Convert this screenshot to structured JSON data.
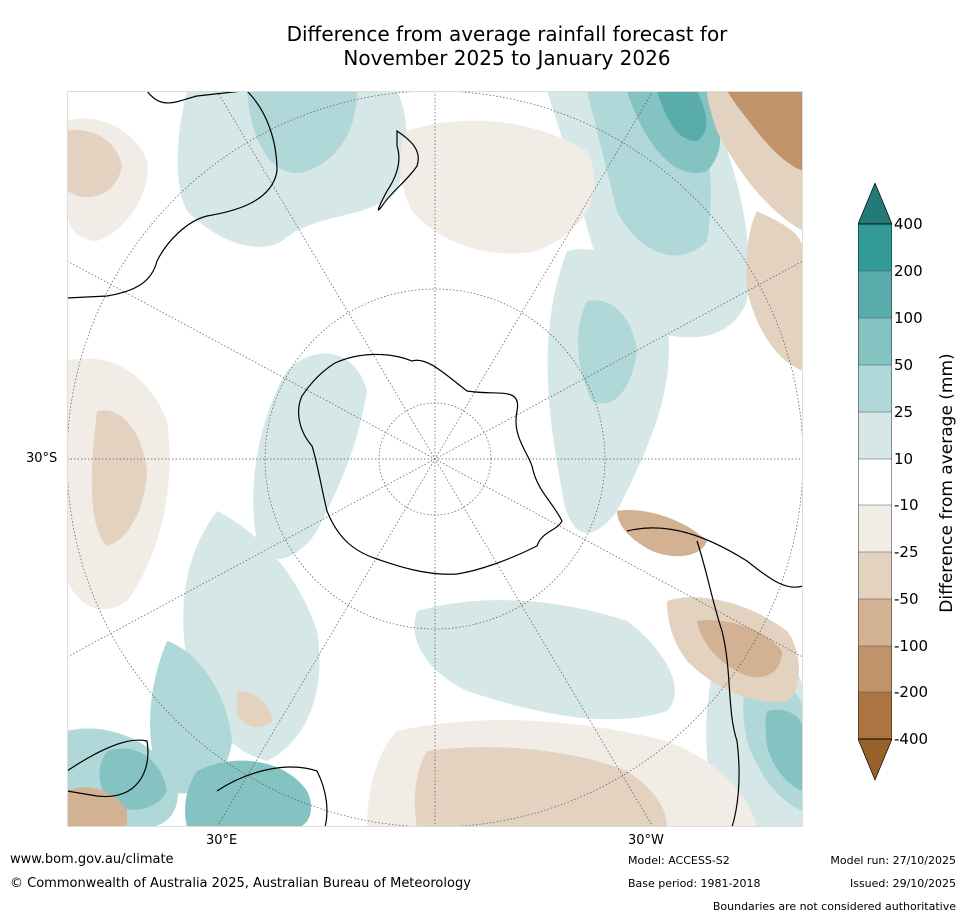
{
  "title": {
    "line1": "Difference from average rainfall forecast for",
    "line2": "November 2025 to January 2026"
  },
  "map": {
    "projection": "south-polar stereographic",
    "lat_label_left": "30°S",
    "lon_label_bottom_left": "30°E",
    "lon_label_bottom_right": "30°W"
  },
  "colorbar": {
    "title": "Difference from average (mm)",
    "ticks": [
      "400",
      "200",
      "100",
      "50",
      "25",
      "10",
      "-10",
      "-25",
      "-50",
      "-100",
      "-200",
      "-400"
    ],
    "colors": [
      "#247a77",
      "#329b97",
      "#5aacab",
      "#85c3c2",
      "#b0d8d8",
      "#d5e8e7",
      "#ffffff",
      "#f2ece6",
      "#e4d2c0",
      "#d2b293",
      "#c0936b",
      "#ab7440",
      "#97612a"
    ]
  },
  "footer": {
    "website": "www.bom.gov.au/climate",
    "copyright": "© Commonwealth of Australia 2025, Australian Bureau of Meteorology",
    "model": "Model: ACCESS-S2",
    "base_period": "Base period: 1981-2018",
    "model_run": "Model run: 27/10/2025",
    "issued": "Issued: 29/10/2025",
    "disclaimer": "Boundaries are not considered authoritative"
  }
}
